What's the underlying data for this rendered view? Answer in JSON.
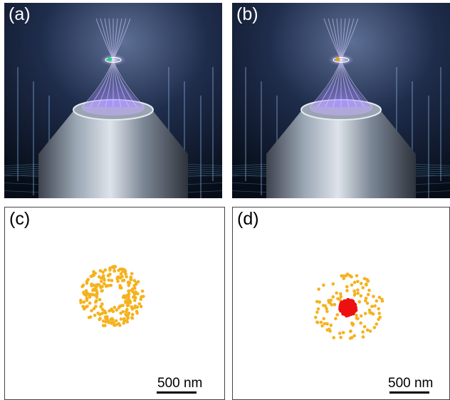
{
  "panels": {
    "a": {
      "label": "(a)",
      "particle_color": "#2fd08a"
    },
    "b": {
      "label": "(b)",
      "particle_color": "#d8a030"
    },
    "c": {
      "label": "(c)",
      "scale_label": "500 nm",
      "scale_nm": 500
    },
    "d": {
      "label": "(d)",
      "scale_label": "500 nm",
      "scale_nm": 500
    }
  },
  "colors": {
    "ring_points": "#f5b21e",
    "core_points": "#ee1111",
    "beam": "#a58cff",
    "lens_body": "#8e9aa8",
    "background_render": "#0d1626"
  },
  "chart_data": [
    {
      "type": "scatter",
      "panel": "c",
      "title": "",
      "xlabel": "",
      "ylabel": "",
      "series": [
        {
          "color": "#f5b21e",
          "pattern": "annulus",
          "center_nm": [
            0,
            0
          ],
          "inner_radius_nm": 140,
          "outer_radius_nm": 400,
          "count": 240
        }
      ]
    },
    {
      "type": "scatter",
      "panel": "d",
      "title": "",
      "xlabel": "",
      "ylabel": "",
      "series": [
        {
          "color": "#f5b21e",
          "pattern": "annulus",
          "center_nm": [
            0,
            0
          ],
          "inner_radius_nm": 140,
          "outer_radius_nm": 440,
          "count": 110
        },
        {
          "color": "#ee1111",
          "pattern": "cluster",
          "center_nm": [
            0,
            0
          ],
          "radius_nm": 120,
          "count": 320
        }
      ]
    }
  ]
}
